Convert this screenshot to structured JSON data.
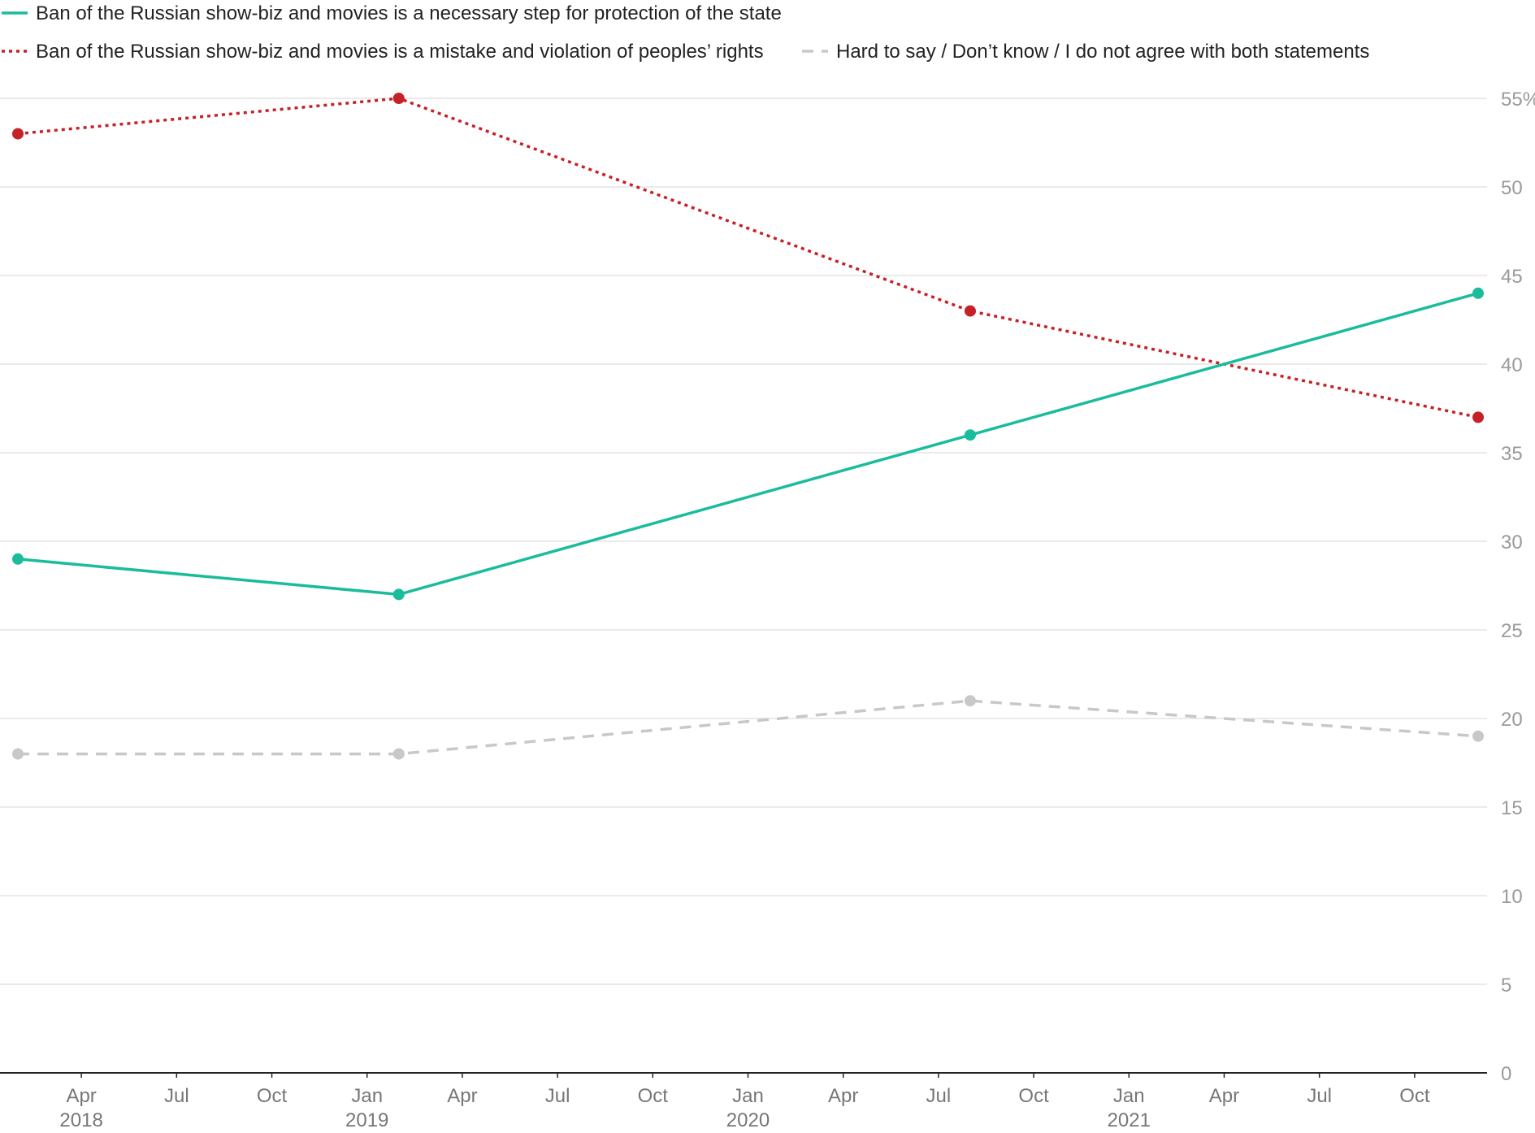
{
  "chart_data": {
    "type": "line",
    "title": "",
    "xlabel": "",
    "ylabel": "",
    "x": [
      "2018-02",
      "2019-02",
      "2020-08",
      "2021-12"
    ],
    "series": [
      {
        "name": "Ban of the Russian show-biz and movies is a necessary step for protection of the state",
        "values": [
          29,
          27,
          36,
          44
        ],
        "color": "#1abc9c",
        "style": "solid"
      },
      {
        "name": "Ban of the Russian show-biz and movies is a mistake and violation of peoples’ rights",
        "values": [
          53,
          55,
          43,
          37
        ],
        "color": "#c62127",
        "style": "dotted"
      },
      {
        "name": "Hard to say / Don’t know / I do not agree with both statements",
        "values": [
          18,
          18,
          21,
          19
        ],
        "color": "#c8c8c8",
        "style": "dashed"
      }
    ],
    "ylim": [
      0,
      55
    ],
    "y_ticks": [
      "0",
      "5",
      "10",
      "15",
      "20",
      "25",
      "30",
      "35",
      "40",
      "45",
      "50",
      "55%"
    ],
    "x_ticks": [
      {
        "label": "Apr",
        "sub": "2018",
        "date": "2018-04"
      },
      {
        "label": "Jul",
        "sub": "",
        "date": "2018-07"
      },
      {
        "label": "Oct",
        "sub": "",
        "date": "2018-10"
      },
      {
        "label": "Jan",
        "sub": "2019",
        "date": "2019-01"
      },
      {
        "label": "Apr",
        "sub": "",
        "date": "2019-04"
      },
      {
        "label": "Jul",
        "sub": "",
        "date": "2019-07"
      },
      {
        "label": "Oct",
        "sub": "",
        "date": "2019-10"
      },
      {
        "label": "Jan",
        "sub": "2020",
        "date": "2020-01"
      },
      {
        "label": "Apr",
        "sub": "",
        "date": "2020-04"
      },
      {
        "label": "Jul",
        "sub": "",
        "date": "2020-07"
      },
      {
        "label": "Oct",
        "sub": "",
        "date": "2020-10"
      },
      {
        "label": "Jan",
        "sub": "2021",
        "date": "2021-01"
      },
      {
        "label": "Apr",
        "sub": "",
        "date": "2021-04"
      },
      {
        "label": "Jul",
        "sub": "",
        "date": "2021-07"
      },
      {
        "label": "Oct",
        "sub": "",
        "date": "2021-10"
      }
    ],
    "grid": true,
    "legend_position": "top-left"
  }
}
